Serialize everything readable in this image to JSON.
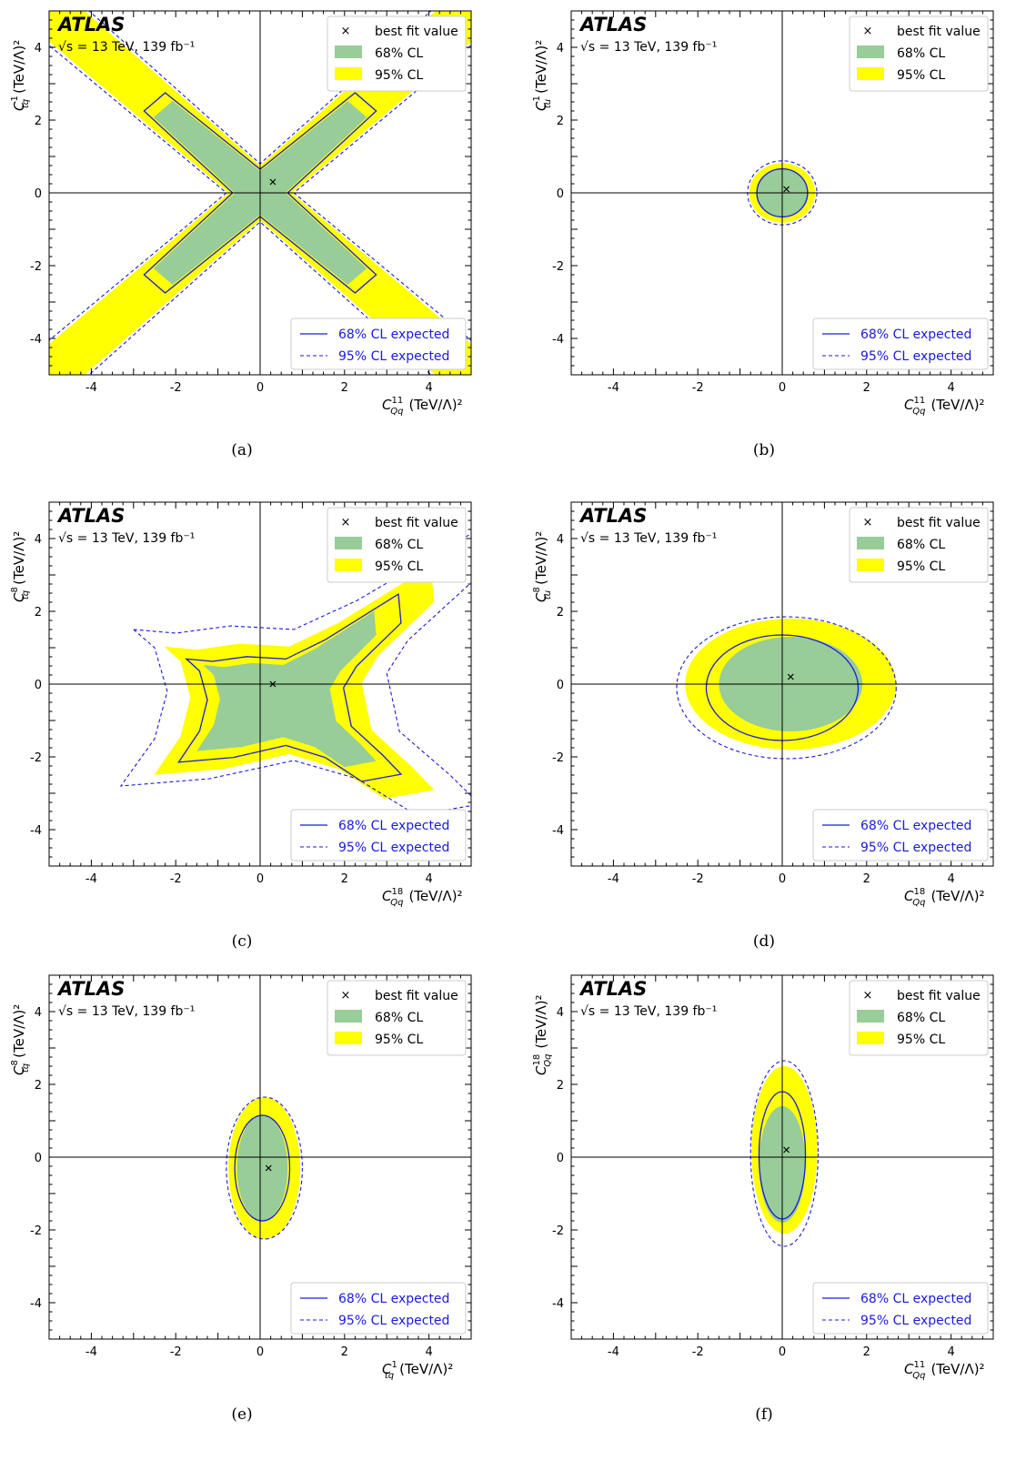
{
  "figure": {
    "experiment": "ATLAS",
    "energy_label": "√s = 13 TeV, 139 fb⁻¹",
    "legend": {
      "best_fit": "best fit value",
      "cl68": "68% CL",
      "cl95": "95% CL",
      "exp68": "68% CL expected",
      "exp95": "95% CL expected"
    },
    "axis_unit": "(TeV/Λ)²",
    "colors": {
      "cl68": "#98cc98",
      "cl95": "#ffff00",
      "expected": "#1a1adb"
    }
  },
  "chart_data": [
    {
      "panel_label": "(a)",
      "type": "contour",
      "xlabel": "C_Qq^11 (TeV/Λ)²",
      "ylabel": "C_tq^1 (TeV/Λ)²",
      "xlim": [
        -5,
        5
      ],
      "ylim": [
        -5,
        5
      ],
      "xticks": [
        -4,
        -2,
        0,
        2,
        4
      ],
      "yticks": [
        -4,
        -2,
        0,
        2,
        4
      ],
      "best_fit": [
        0.3,
        0.3
      ],
      "shape": "x-cross"
    },
    {
      "panel_label": "(b)",
      "type": "contour",
      "xlabel": "C_Qq^11 (TeV/Λ)²",
      "ylabel": "C_tu^1 (TeV/Λ)²",
      "xlim": [
        -5,
        5
      ],
      "ylim": [
        -5,
        5
      ],
      "xticks": [
        -4,
        -2,
        0,
        2,
        4
      ],
      "yticks": [
        -4,
        -2,
        0,
        2,
        4
      ],
      "best_fit": [
        0.1,
        0.1
      ],
      "contours": {
        "cl95": {
          "cx": 0.0,
          "cy": 0.0,
          "rx": 0.78,
          "ry": 0.82
        },
        "cl68": {
          "cx": 0.0,
          "cy": 0.0,
          "rx": 0.62,
          "ry": 0.68
        },
        "exp95": {
          "cx": 0.0,
          "cy": 0.0,
          "rx": 0.82,
          "ry": 0.88
        },
        "exp68": {
          "cx": 0.0,
          "cy": 0.0,
          "rx": 0.6,
          "ry": 0.66
        }
      }
    },
    {
      "panel_label": "(c)",
      "type": "contour",
      "xlabel": "C_Qq^18 (TeV/Λ)²",
      "ylabel": "C_tq^8 (TeV/Λ)²",
      "xlim": [
        -5,
        5
      ],
      "ylim": [
        -5,
        5
      ],
      "xticks": [
        -4,
        -2,
        0,
        2,
        4
      ],
      "yticks": [
        -4,
        -2,
        0,
        2,
        4
      ],
      "best_fit": [
        0.3,
        0.0
      ],
      "shape": "butterfly"
    },
    {
      "panel_label": "(d)",
      "type": "contour",
      "xlabel": "C_Qq^18 (TeV/Λ)²",
      "ylabel": "C_tu^8 (TeV/Λ)²",
      "xlim": [
        -5,
        5
      ],
      "ylim": [
        -5,
        5
      ],
      "xticks": [
        -4,
        -2,
        0,
        2,
        4
      ],
      "yticks": [
        -4,
        -2,
        0,
        2,
        4
      ],
      "best_fit": [
        0.2,
        0.2
      ],
      "contours": {
        "cl95": {
          "cx": 0.2,
          "cy": 0.0,
          "rx": 2.5,
          "ry": 1.8
        },
        "cl68": {
          "cx": 0.2,
          "cy": 0.0,
          "rx": 1.7,
          "ry": 1.3
        },
        "exp95": {
          "cx": 0.1,
          "cy": -0.1,
          "rx": 2.6,
          "ry": 1.95
        },
        "exp68": {
          "cx": 0.0,
          "cy": -0.1,
          "rx": 1.8,
          "ry": 1.45
        }
      }
    },
    {
      "panel_label": "(e)",
      "type": "contour",
      "xlabel": "C_tq^1 (TeV/Λ)²",
      "ylabel": "C_tq^8 (TeV/Λ)²",
      "xlim": [
        -5,
        5
      ],
      "ylim": [
        -5,
        5
      ],
      "xticks": [
        -4,
        -2,
        0,
        2,
        4
      ],
      "yticks": [
        -4,
        -2,
        0,
        2,
        4
      ],
      "best_fit": [
        0.2,
        -0.3
      ],
      "contours": {
        "cl95": {
          "cx": 0.1,
          "cy": -0.3,
          "rx": 0.85,
          "ry": 1.95
        },
        "cl68": {
          "cx": 0.05,
          "cy": -0.3,
          "rx": 0.6,
          "ry": 1.45
        },
        "exp95": {
          "cx": 0.1,
          "cy": -0.3,
          "rx": 0.9,
          "ry": 1.95
        },
        "exp68": {
          "cx": 0.05,
          "cy": -0.3,
          "rx": 0.65,
          "ry": 1.45
        }
      }
    },
    {
      "panel_label": "(f)",
      "type": "contour",
      "xlabel": "C_Qq^11 (TeV/Λ)²",
      "ylabel": "C_Qq^18 (TeV/Λ)²",
      "xlim": [
        -5,
        5
      ],
      "ylim": [
        -5,
        5
      ],
      "xticks": [
        -4,
        -2,
        0,
        2,
        4
      ],
      "yticks": [
        -4,
        -2,
        0,
        2,
        4
      ],
      "best_fit": [
        0.1,
        0.2
      ],
      "contours": {
        "cl95": {
          "cx": 0.05,
          "cy": 0.2,
          "rx": 0.78,
          "ry": 2.3
        },
        "cl68": {
          "cx": 0.0,
          "cy": -0.2,
          "rx": 0.55,
          "ry": 1.6
        },
        "exp95": {
          "cx": 0.05,
          "cy": 0.1,
          "rx": 0.8,
          "ry": 2.55
        },
        "exp68": {
          "cx": 0.0,
          "cy": 0.05,
          "rx": 0.55,
          "ry": 1.75
        }
      }
    }
  ]
}
